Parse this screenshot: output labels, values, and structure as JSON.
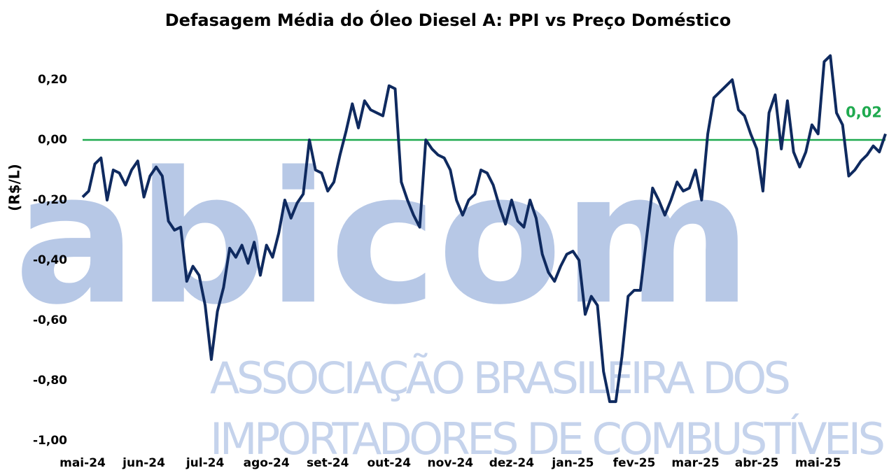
{
  "chart_data": {
    "type": "line",
    "title": "Defasagem Média do Óleo Diesel A: PPI vs Preço Doméstico",
    "y_label": "(R$/L)",
    "watermark": [
      "abicom",
      "ASSOCIAÇÃO BRASILEIRA DOS",
      "IMPORTADORES DE COMBUSTÍVEIS"
    ],
    "categories": [
      "mai-24",
      null,
      null,
      null,
      null,
      null,
      null,
      null,
      null,
      null,
      "jun-24",
      null,
      null,
      null,
      null,
      null,
      null,
      null,
      null,
      null,
      "jul-24",
      null,
      null,
      null,
      null,
      null,
      null,
      null,
      null,
      null,
      "ago-24",
      null,
      null,
      null,
      null,
      null,
      null,
      null,
      null,
      null,
      "set-24",
      null,
      null,
      null,
      null,
      null,
      null,
      null,
      null,
      null,
      "out-24",
      null,
      null,
      null,
      null,
      null,
      null,
      null,
      null,
      null,
      "nov-24",
      null,
      null,
      null,
      null,
      null,
      null,
      null,
      null,
      null,
      "dez-24",
      null,
      null,
      null,
      null,
      null,
      null,
      null,
      null,
      null,
      "jan-25",
      null,
      null,
      null,
      null,
      null,
      null,
      null,
      null,
      null,
      "fev-25",
      null,
      null,
      null,
      null,
      null,
      null,
      null,
      null,
      null,
      "mar-25",
      null,
      null,
      null,
      null,
      null,
      null,
      null,
      null,
      null,
      "abr-25",
      null,
      null,
      null,
      null,
      null,
      null,
      null,
      null,
      null,
      "mai-25",
      null,
      null,
      null,
      null,
      null,
      null,
      null,
      null,
      null,
      null,
      null
    ],
    "series": [
      {
        "name": "Defasagem",
        "color": "#0f2a5f",
        "values": [
          -0.19,
          -0.17,
          -0.08,
          -0.06,
          -0.2,
          -0.1,
          -0.11,
          -0.15,
          -0.1,
          -0.07,
          -0.19,
          -0.12,
          -0.09,
          -0.12,
          -0.27,
          -0.3,
          -0.29,
          -0.47,
          -0.42,
          -0.45,
          -0.55,
          -0.73,
          -0.57,
          -0.49,
          -0.36,
          -0.39,
          -0.35,
          -0.41,
          -0.34,
          -0.45,
          -0.35,
          -0.39,
          -0.31,
          -0.2,
          -0.26,
          -0.21,
          -0.18,
          0.0,
          -0.1,
          -0.11,
          -0.17,
          -0.14,
          -0.05,
          0.03,
          0.12,
          0.04,
          0.13,
          0.1,
          0.09,
          0.08,
          0.18,
          0.17,
          -0.14,
          -0.2,
          -0.25,
          -0.29,
          0.0,
          -0.03,
          -0.05,
          -0.06,
          -0.1,
          -0.2,
          -0.25,
          -0.2,
          -0.18,
          -0.1,
          -0.11,
          -0.15,
          -0.22,
          -0.28,
          -0.2,
          -0.27,
          -0.29,
          -0.2,
          -0.26,
          -0.38,
          -0.44,
          -0.47,
          -0.42,
          -0.38,
          -0.37,
          -0.4,
          -0.58,
          -0.52,
          -0.55,
          -0.77,
          -0.87,
          -0.87,
          -0.72,
          -0.52,
          -0.5,
          -0.5,
          -0.33,
          -0.16,
          -0.2,
          -0.25,
          -0.2,
          -0.14,
          -0.17,
          -0.16,
          -0.1,
          -0.2,
          0.02,
          0.14,
          0.16,
          0.18,
          0.2,
          0.1,
          0.08,
          0.02,
          -0.03,
          -0.17,
          0.09,
          0.15,
          -0.03,
          0.13,
          -0.04,
          -0.09,
          -0.04,
          0.05,
          0.02,
          0.26,
          0.28,
          0.09,
          0.05,
          -0.12,
          -0.1,
          -0.07,
          -0.05,
          -0.02,
          -0.04,
          0.02
        ]
      }
    ],
    "last_label": "0,02",
    "last_label_color": "#1faa4f",
    "reference_line": {
      "value": 0,
      "color": "#1faa4f"
    },
    "ylim": [
      -1.0,
      0.3
    ],
    "yticks": [
      {
        "value": 0.2,
        "label": "0,20"
      },
      {
        "value": 0,
        "label": "0,00"
      },
      {
        "value": -0.2,
        "label": "-0,20"
      },
      {
        "value": -0.4,
        "label": "-0,40"
      },
      {
        "value": -0.6,
        "label": "-0,60"
      },
      {
        "value": -0.8,
        "label": "-0,80"
      },
      {
        "value": -1.0,
        "label": "-1,00"
      }
    ],
    "grid": false
  }
}
